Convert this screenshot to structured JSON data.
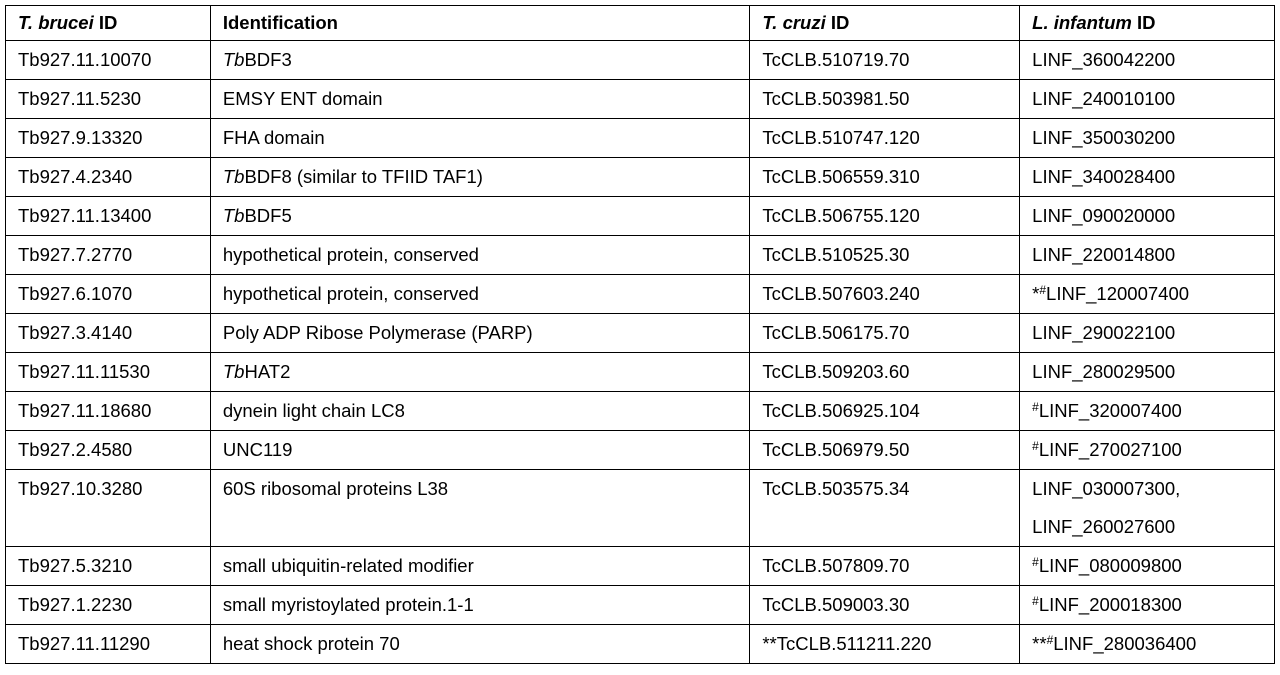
{
  "table": {
    "header": [
      {
        "parts": [
          {
            "text": "T. brucei",
            "style": "italic"
          },
          {
            "text": " ID"
          }
        ]
      },
      {
        "parts": [
          {
            "text": "Identification"
          }
        ]
      },
      {
        "parts": [
          {
            "text": "T. cruzi",
            "style": "italic"
          },
          {
            "text": " ID"
          }
        ]
      },
      {
        "parts": [
          {
            "text": "L. infantum",
            "style": "italic"
          },
          {
            "text": " ID"
          }
        ]
      }
    ],
    "rows": [
      [
        "Tb927.11.10070",
        {
          "parts": [
            {
              "text": "Tb",
              "style": "italic"
            },
            {
              "text": "BDF3"
            }
          ]
        },
        "TcCLB.510719.70",
        "LINF_360042200"
      ],
      [
        "Tb927.11.5230",
        "EMSY ENT domain",
        "TcCLB.503981.50",
        "LINF_240010100"
      ],
      [
        "Tb927.9.13320",
        "FHA domain",
        "TcCLB.510747.120",
        "LINF_350030200"
      ],
      [
        "Tb927.4.2340",
        {
          "parts": [
            {
              "text": "Tb",
              "style": "italic"
            },
            {
              "text": "BDF8 (similar to TFIID TAF1)"
            }
          ]
        },
        "TcCLB.506559.310",
        "LINF_340028400"
      ],
      [
        "Tb927.11.13400",
        {
          "parts": [
            {
              "text": "Tb",
              "style": "italic"
            },
            {
              "text": "BDF5"
            }
          ]
        },
        "TcCLB.506755.120",
        "LINF_090020000"
      ],
      [
        "Tb927.7.2770",
        "hypothetical protein, conserved",
        "TcCLB.510525.30",
        "LINF_220014800"
      ],
      [
        "Tb927.6.1070",
        "hypothetical protein, conserved",
        "TcCLB.507603.240",
        {
          "parts": [
            {
              "text": "*"
            },
            {
              "text": "#",
              "style": "sup"
            },
            {
              "text": "LINF_120007400"
            }
          ]
        }
      ],
      [
        "Tb927.3.4140",
        "Poly ADP Ribose Polymerase (PARP)",
        "TcCLB.506175.70",
        "LINF_290022100"
      ],
      [
        "Tb927.11.11530",
        {
          "parts": [
            {
              "text": "Tb",
              "style": "italic"
            },
            {
              "text": "HAT2"
            }
          ]
        },
        "TcCLB.509203.60",
        "LINF_280029500"
      ],
      [
        "Tb927.11.18680",
        "dynein light chain LC8",
        "TcCLB.506925.104",
        {
          "parts": [
            {
              "text": "#",
              "style": "sup"
            },
            {
              "text": "LINF_320007400"
            }
          ]
        }
      ],
      [
        "Tb927.2.4580",
        "UNC119",
        "TcCLB.506979.50",
        {
          "parts": [
            {
              "text": "#",
              "style": "sup"
            },
            {
              "text": "LINF_270027100"
            }
          ]
        }
      ],
      [
        "Tb927.10.3280",
        "60S ribosomal proteins L38",
        "TcCLB.503575.34",
        {
          "lines": [
            "LINF_030007300,",
            "LINF_260027600"
          ]
        }
      ],
      [
        "Tb927.5.3210",
        "small ubiquitin-related modifier",
        "TcCLB.507809.70",
        {
          "parts": [
            {
              "text": "#",
              "style": "sup"
            },
            {
              "text": "LINF_080009800"
            }
          ]
        }
      ],
      [
        "Tb927.1.2230",
        "small myristoylated protein.1-1",
        "TcCLB.509003.30",
        {
          "parts": [
            {
              "text": "#",
              "style": "sup"
            },
            {
              "text": "LINF_200018300"
            }
          ]
        }
      ],
      [
        "Tb927.11.11290",
        "heat shock protein 70",
        "**TcCLB.511211.220",
        {
          "parts": [
            {
              "text": "**"
            },
            {
              "text": "#",
              "style": "sup"
            },
            {
              "text": "LINF_280036400"
            }
          ]
        }
      ]
    ]
  }
}
